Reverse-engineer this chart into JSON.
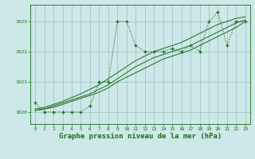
{
  "title": "Graphe pression niveau de la mer (hPa)",
  "background_color": "#cce8e8",
  "grid_color": "#9dbfbf",
  "line_color": "#1a6b1a",
  "xlim": [
    -0.5,
    23.5
  ],
  "ylim": [
    1019.6,
    1023.55
  ],
  "yticks": [
    1020,
    1021,
    1022,
    1023
  ],
  "xticks": [
    0,
    1,
    2,
    3,
    4,
    5,
    6,
    7,
    8,
    9,
    10,
    11,
    12,
    13,
    14,
    15,
    16,
    17,
    18,
    19,
    20,
    21,
    22,
    23
  ],
  "title_fontsize": 6.5,
  "jagged": [
    1020.3,
    1020.0,
    1020.0,
    1020.0,
    1020.0,
    1020.0,
    1020.2,
    1021.0,
    1021.0,
    1023.0,
    1023.0,
    1022.2,
    1022.0,
    1022.0,
    1022.0,
    1022.1,
    1022.0,
    1022.2,
    1022.0,
    1023.0,
    1023.3,
    1022.2,
    1023.0,
    1023.0
  ],
  "trend1": [
    1020.05,
    1020.1,
    1020.15,
    1020.25,
    1020.35,
    1020.45,
    1020.55,
    1020.65,
    1020.8,
    1021.0,
    1021.15,
    1021.3,
    1021.45,
    1021.6,
    1021.75,
    1021.85,
    1021.95,
    1022.05,
    1022.2,
    1022.35,
    1022.5,
    1022.65,
    1022.8,
    1023.0
  ],
  "trend2": [
    1020.05,
    1020.1,
    1020.2,
    1020.3,
    1020.4,
    1020.5,
    1020.6,
    1020.75,
    1020.9,
    1021.1,
    1021.3,
    1021.5,
    1021.65,
    1021.8,
    1021.9,
    1022.0,
    1022.1,
    1022.2,
    1022.35,
    1022.5,
    1022.65,
    1022.8,
    1022.95,
    1023.05
  ],
  "trend3": [
    1020.1,
    1020.15,
    1020.25,
    1020.35,
    1020.48,
    1020.6,
    1020.75,
    1020.9,
    1021.1,
    1021.3,
    1021.5,
    1021.7,
    1021.85,
    1022.0,
    1022.1,
    1022.2,
    1022.3,
    1022.45,
    1022.6,
    1022.75,
    1022.9,
    1023.0,
    1023.1,
    1023.15
  ]
}
